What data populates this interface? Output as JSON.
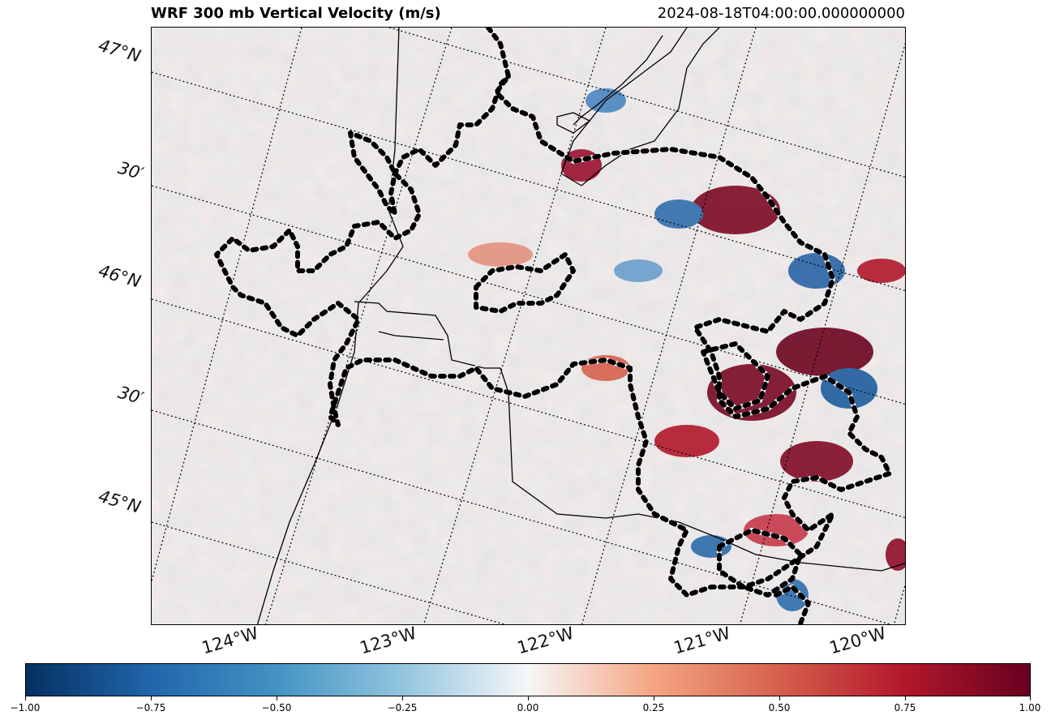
{
  "title": "WRF 300 mb Vertical Velocity (m/s)",
  "timestamp": "2024-08-18T04:00:00.000000000",
  "latitude_labels": [
    "47°N",
    "30′",
    "46°N",
    "30′",
    "45°N"
  ],
  "longitude_labels": [
    "124°W",
    "123°W",
    "122°W",
    "121°W",
    "120°W"
  ],
  "colorbar": {
    "min": -1.0,
    "max": 1.0,
    "colormap": "RdBu_r",
    "tick_labels": [
      "−1.00",
      "−0.75",
      "−0.50",
      "−0.25",
      "0.00",
      "0.25",
      "0.50",
      "0.75",
      "1.00"
    ],
    "colors": [
      "#053061",
      "#2166ac",
      "#4393c3",
      "#92c5de",
      "#f7f7f7",
      "#f4a582",
      "#d6604d",
      "#b2182b",
      "#67001f"
    ]
  }
}
